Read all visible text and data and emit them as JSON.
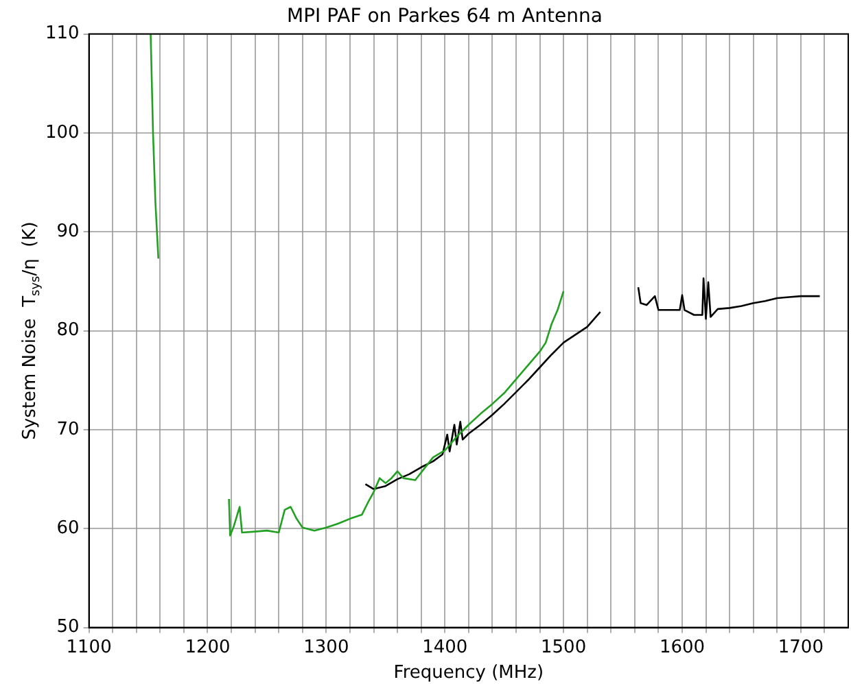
{
  "chart_data": {
    "type": "line",
    "title": "MPI PAF on Parkes 64 m Antenna",
    "xlabel": "Frequency (MHz)",
    "ylabel": "System Noise  T$_{sys}$/η  (K)",
    "xlim": [
      1100,
      1740
    ],
    "ylim": [
      50,
      110
    ],
    "xticks": [
      1100,
      {
        "value": 1120,
        "label": null
      },
      {
        "value": 1140,
        "label": null
      },
      {
        "value": 1160,
        "label": null
      },
      {
        "value": 1180,
        "label": null
      },
      1200,
      {
        "value": 1220,
        "label": null
      },
      {
        "value": 1240,
        "label": null
      },
      {
        "value": 1260,
        "label": null
      },
      {
        "value": 1280,
        "label": null
      },
      1300,
      {
        "value": 1320,
        "label": null
      },
      {
        "value": 1340,
        "label": null
      },
      {
        "value": 1360,
        "label": null
      },
      {
        "value": 1380,
        "label": null
      },
      1400,
      {
        "value": 1420,
        "label": null
      },
      {
        "value": 1440,
        "label": null
      },
      {
        "value": 1460,
        "label": null
      },
      {
        "value": 1480,
        "label": null
      },
      1500,
      {
        "value": 1520,
        "label": null
      },
      {
        "value": 1540,
        "label": null
      },
      {
        "value": 1560,
        "label": null
      },
      {
        "value": 1580,
        "label": null
      },
      1600,
      {
        "value": 1620,
        "label": null
      },
      {
        "value": 1640,
        "label": null
      },
      {
        "value": 1660,
        "label": null
      },
      {
        "value": 1680,
        "label": null
      },
      1700,
      {
        "value": 1720,
        "label": null
      }
    ],
    "yticks": [
      50,
      60,
      70,
      80,
      90,
      100,
      110
    ],
    "grid": true,
    "legend": false,
    "marker": "none",
    "line_style": "solid",
    "series": [
      {
        "color": "#22a022",
        "x": [
          1152,
          1154,
          1156,
          1158.5,
          1160,
          1218,
          1219,
          1222,
          1227,
          1229,
          1240,
          1250,
          1260,
          1265,
          1270,
          1275,
          1280,
          1290,
          1300,
          1310,
          1320,
          1330,
          1335,
          1340,
          1345,
          1350,
          1355,
          1360,
          1365,
          1375,
          1390,
          1400,
          1410,
          1420,
          1430,
          1440,
          1450,
          1460,
          1470,
          1480,
          1485,
          1490,
          1495,
          1500
        ],
        "values": [
          110,
          100,
          93,
          87.3,
          null,
          63.0,
          59.3,
          60.2,
          62.2,
          59.6,
          59.7,
          59.8,
          59.6,
          61.9,
          62.2,
          61.0,
          60.1,
          59.8,
          60.1,
          60.5,
          61.0,
          61.4,
          62.6,
          63.7,
          65.1,
          64.6,
          65.1,
          65.8,
          65.1,
          64.9,
          67.2,
          67.9,
          69.3,
          70.5,
          71.6,
          72.6,
          73.7,
          75.1,
          76.5,
          77.9,
          78.8,
          80.7,
          82.1,
          84.0
        ]
      },
      {
        "color": "#000000",
        "x": [
          1333,
          1340,
          1350,
          1360,
          1370,
          1380,
          1390,
          1398,
          1402,
          1404,
          1408,
          1410,
          1413,
          1415,
          1420,
          1430,
          1440,
          1450,
          1460,
          1470,
          1480,
          1490,
          1500,
          1510,
          1520,
          1531,
          1545,
          1563,
          1565,
          1570,
          1577,
          1580,
          1590,
          1598,
          1600,
          1602,
          1610,
          1617,
          1618,
          1620,
          1622,
          1624,
          1630,
          1640,
          1650,
          1660,
          1670,
          1680,
          1690,
          1700,
          1716
        ],
        "values": [
          64.5,
          64.0,
          64.3,
          65.0,
          65.5,
          66.2,
          66.8,
          67.5,
          69.5,
          67.8,
          70.5,
          68.5,
          70.8,
          69.0,
          69.6,
          70.5,
          71.5,
          72.6,
          73.8,
          75.0,
          76.3,
          77.6,
          78.8,
          79.6,
          80.4,
          81.9,
          null,
          84.4,
          82.8,
          82.6,
          83.5,
          82.1,
          82.1,
          82.1,
          83.6,
          82.1,
          81.6,
          81.6,
          85.3,
          81.2,
          84.9,
          81.4,
          82.2,
          82.3,
          82.5,
          82.8,
          83.0,
          83.3,
          83.4,
          83.5,
          83.5
        ]
      }
    ]
  }
}
